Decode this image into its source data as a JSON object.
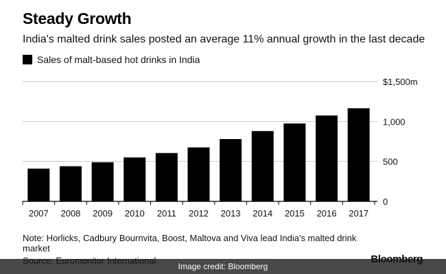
{
  "title": "Steady Growth",
  "subtitle": "India's malted drink sales posted an average 11% annual growth in the last decade",
  "note": "Note: Horlicks, Cadbury Bournvita, Boost, Maltova and Viva lead India's malted drink market",
  "source": "Source: Euromonitor International",
  "credit": "Image credit: Bloomberg",
  "brand": "Bloomberg",
  "chart_data": {
    "type": "bar",
    "categories": [
      "2007",
      "2008",
      "2009",
      "2010",
      "2011",
      "2012",
      "2013",
      "2014",
      "2015",
      "2016",
      "2017"
    ],
    "series": [
      {
        "name": "Sales of malt-based hot drinks in India",
        "values": [
          410,
          440,
          490,
          550,
          605,
          675,
          780,
          880,
          975,
          1075,
          1165
        ],
        "color": "#000000"
      }
    ],
    "ylim": [
      0,
      1500
    ],
    "yticks": [
      0,
      500,
      1000,
      1500
    ],
    "ytick_labels": [
      "0",
      "500",
      "1,000",
      "$1,500m"
    ],
    "grid": true,
    "legend_position": "top-left",
    "axis_side": "right"
  }
}
